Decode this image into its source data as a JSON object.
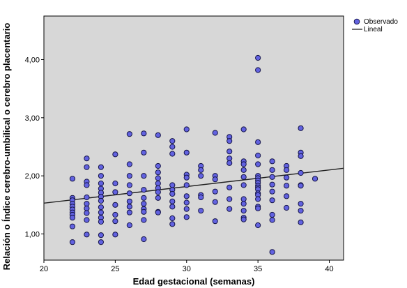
{
  "chart_data": {
    "type": "scatter",
    "title": "",
    "xlabel": "Edad gestacional (semanas)",
    "ylabel": "Relación o Índice cerebro-umbilical o cerebro placentario",
    "xlim": [
      20,
      41
    ],
    "ylim": [
      0.55,
      4.75
    ],
    "x_ticks": [
      20,
      25,
      30,
      35,
      40
    ],
    "x_tick_labels": [
      "20",
      "25",
      "30",
      "35",
      "40"
    ],
    "y_ticks": [
      1.0,
      2.0,
      3.0,
      4.0
    ],
    "y_tick_labels": [
      "1,00",
      "2,00",
      "3,00",
      "4,00"
    ],
    "grid": false,
    "legend_position": "right",
    "colors": {
      "plot_background": "#d7d7d7",
      "point_fill": "#6262e0",
      "point_stroke": "#141447",
      "fit_line": "#222222"
    },
    "series": [
      {
        "name": "Observado",
        "kind": "points",
        "points": [
          [
            22,
            1.95
          ],
          [
            22,
            1.62
          ],
          [
            22,
            1.58
          ],
          [
            22,
            1.52
          ],
          [
            22,
            1.47
          ],
          [
            22,
            1.42
          ],
          [
            22,
            1.37
          ],
          [
            22,
            1.33
          ],
          [
            22,
            1.28
          ],
          [
            22,
            1.13
          ],
          [
            22,
            0.86
          ],
          [
            23,
            2.3
          ],
          [
            23,
            2.15
          ],
          [
            23,
            1.9
          ],
          [
            23,
            1.84
          ],
          [
            23,
            1.63
          ],
          [
            23,
            1.52
          ],
          [
            23,
            1.44
          ],
          [
            23,
            1.36
          ],
          [
            23,
            1.24
          ],
          [
            23,
            0.99
          ],
          [
            24,
            2.15
          ],
          [
            24,
            2.0
          ],
          [
            24,
            1.87
          ],
          [
            24,
            1.78
          ],
          [
            24,
            1.71
          ],
          [
            24,
            1.64
          ],
          [
            24,
            1.57
          ],
          [
            24,
            1.46
          ],
          [
            24,
            1.37
          ],
          [
            24,
            1.28
          ],
          [
            24,
            1.21
          ],
          [
            24,
            0.98
          ],
          [
            24,
            0.86
          ],
          [
            25,
            2.37
          ],
          [
            25,
            1.87
          ],
          [
            25,
            1.72
          ],
          [
            25,
            1.5
          ],
          [
            25,
            1.33
          ],
          [
            25,
            1.22
          ],
          [
            25,
            0.99
          ],
          [
            26,
            2.72
          ],
          [
            26,
            2.2
          ],
          [
            26,
            2.0
          ],
          [
            26,
            1.84
          ],
          [
            26,
            1.7
          ],
          [
            26,
            1.56
          ],
          [
            26,
            1.47
          ],
          [
            26,
            1.37
          ],
          [
            26,
            1.15
          ],
          [
            27,
            2.73
          ],
          [
            27,
            2.4
          ],
          [
            27,
            2.0
          ],
          [
            27,
            1.76
          ],
          [
            27,
            1.62
          ],
          [
            27,
            1.52
          ],
          [
            27,
            1.43
          ],
          [
            27,
            1.38
          ],
          [
            27,
            1.24
          ],
          [
            27,
            0.91
          ],
          [
            28,
            2.7
          ],
          [
            28,
            2.17
          ],
          [
            28,
            2.06
          ],
          [
            28,
            1.96
          ],
          [
            28,
            1.87
          ],
          [
            28,
            1.79
          ],
          [
            28,
            1.72
          ],
          [
            28,
            1.62
          ],
          [
            28,
            1.38
          ],
          [
            28,
            1.37
          ],
          [
            29,
            2.6
          ],
          [
            29,
            2.5
          ],
          [
            29,
            2.38
          ],
          [
            29,
            1.84
          ],
          [
            29,
            1.76
          ],
          [
            29,
            1.69
          ],
          [
            29,
            1.56
          ],
          [
            29,
            1.47
          ],
          [
            29,
            1.27
          ],
          [
            29,
            1.17
          ],
          [
            30,
            2.8
          ],
          [
            30,
            2.4
          ],
          [
            30,
            2.02
          ],
          [
            30,
            1.97
          ],
          [
            30,
            1.84
          ],
          [
            30,
            1.65
          ],
          [
            30,
            1.54
          ],
          [
            30,
            1.43
          ],
          [
            30,
            1.29
          ],
          [
            31,
            2.17
          ],
          [
            31,
            2.1
          ],
          [
            31,
            2.0
          ],
          [
            31,
            1.67
          ],
          [
            31,
            1.63
          ],
          [
            31,
            1.4
          ],
          [
            32,
            2.74
          ],
          [
            32,
            2.0
          ],
          [
            32,
            1.94
          ],
          [
            32,
            1.73
          ],
          [
            32,
            1.55
          ],
          [
            32,
            1.22
          ],
          [
            33,
            2.67
          ],
          [
            33,
            2.6
          ],
          [
            33,
            2.42
          ],
          [
            33,
            2.3
          ],
          [
            33,
            2.22
          ],
          [
            33,
            1.8
          ],
          [
            33,
            1.6
          ],
          [
            33,
            1.43
          ],
          [
            34,
            2.8
          ],
          [
            34,
            2.25
          ],
          [
            34,
            2.2
          ],
          [
            34,
            2.1
          ],
          [
            34,
            1.98
          ],
          [
            34,
            1.84
          ],
          [
            34,
            1.6
          ],
          [
            34,
            1.52
          ],
          [
            34,
            1.4
          ],
          [
            34,
            1.28
          ],
          [
            34,
            1.25
          ],
          [
            35,
            4.03
          ],
          [
            35,
            3.82
          ],
          [
            35,
            2.58
          ],
          [
            35,
            2.35
          ],
          [
            35,
            2.2
          ],
          [
            35,
            2.0
          ],
          [
            35,
            1.96
          ],
          [
            35,
            1.92
          ],
          [
            35,
            1.88
          ],
          [
            35,
            1.83
          ],
          [
            35,
            1.8
          ],
          [
            35,
            1.77
          ],
          [
            35,
            1.7
          ],
          [
            35,
            1.67
          ],
          [
            35,
            1.6
          ],
          [
            35,
            1.47
          ],
          [
            35,
            1.44
          ],
          [
            35,
            1.15
          ],
          [
            36,
            2.25
          ],
          [
            36,
            2.1
          ],
          [
            36,
            1.98
          ],
          [
            36,
            1.85
          ],
          [
            36,
            1.73
          ],
          [
            36,
            1.58
          ],
          [
            36,
            1.33
          ],
          [
            36,
            1.24
          ],
          [
            36,
            0.69
          ],
          [
            37,
            2.17
          ],
          [
            37,
            2.1
          ],
          [
            37,
            1.97
          ],
          [
            37,
            1.83
          ],
          [
            37,
            1.65
          ],
          [
            37,
            1.45
          ],
          [
            38,
            2.82
          ],
          [
            38,
            2.4
          ],
          [
            38,
            2.34
          ],
          [
            38,
            2.05
          ],
          [
            38,
            1.84
          ],
          [
            38,
            1.83
          ],
          [
            38,
            1.52
          ],
          [
            38,
            1.4
          ],
          [
            38,
            1.2
          ],
          [
            39,
            1.95
          ]
        ]
      },
      {
        "name": "Lineal",
        "kind": "line",
        "points": [
          [
            20,
            1.53
          ],
          [
            41,
            2.13
          ]
        ]
      }
    ]
  }
}
